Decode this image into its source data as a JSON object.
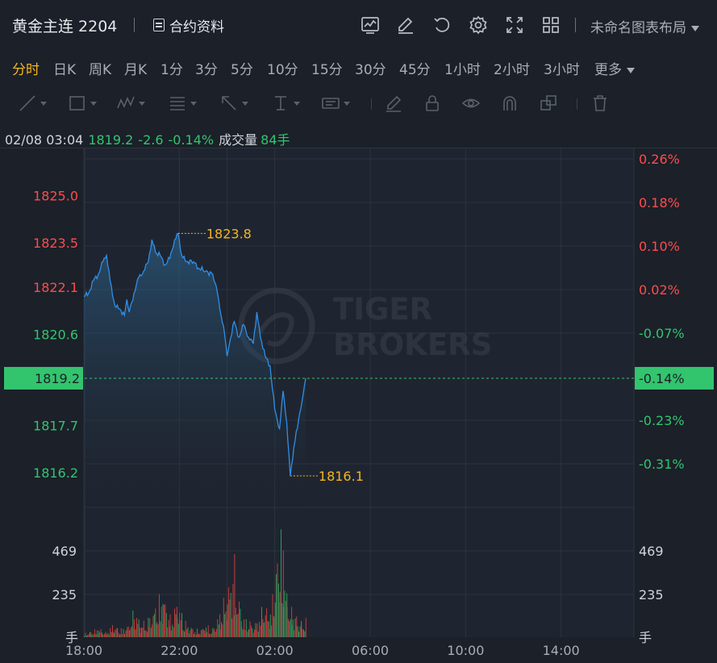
{
  "header": {
    "title": "黄金主连 2204",
    "contract_label": "合约资料",
    "layout_name": "未命名图表布局",
    "icons": [
      "chart-line-icon",
      "edit-icon",
      "undo-icon",
      "gear-icon",
      "fullscreen-icon",
      "grid-icon"
    ]
  },
  "periods": [
    {
      "label": "分时",
      "active": true
    },
    {
      "label": "日K"
    },
    {
      "label": "周K"
    },
    {
      "label": "月K"
    },
    {
      "label": "1分"
    },
    {
      "label": "3分"
    },
    {
      "label": "5分"
    },
    {
      "label": "10分"
    },
    {
      "label": "15分"
    },
    {
      "label": "30分"
    },
    {
      "label": "45分"
    },
    {
      "label": "1小时"
    },
    {
      "label": "2小时"
    },
    {
      "label": "3小时"
    },
    {
      "label": "更多"
    }
  ],
  "drawing_tools": [
    "line-tool-icon",
    "rect-tool-icon",
    "wave-tool-icon",
    "fib-tool-icon",
    "arrow-tool-icon",
    "text-position-tool-icon",
    "text-label-tool-icon",
    "brush-icon",
    "lock-icon",
    "eye-icon",
    "magnet-icon",
    "copy-icon",
    "trash-icon"
  ],
  "info": {
    "datetime": "02/08 03:04",
    "price": "1819.2",
    "change": "-2.6",
    "change_pct": "-0.14%",
    "volume_label": "成交量",
    "volume": "84手"
  },
  "colors": {
    "up": "#ff4c4c",
    "down": "#33c46e",
    "line": "#2f8fe8",
    "accent": "#f5b622",
    "bg": "#1b2029"
  },
  "watermark": {
    "line1": "TIGER",
    "line2": "BROKERS"
  },
  "chart_data": {
    "type": "line",
    "price_ticks": [
      1825.0,
      1823.5,
      1822.1,
      1820.6,
      1817.7,
      1816.2
    ],
    "pct_ticks": [
      "0.26%",
      "0.18%",
      "0.10%",
      "0.02%",
      "-0.07%",
      "-0.23%",
      "-0.31%"
    ],
    "current_price": "1819.2",
    "current_pct": "-0.14%",
    "high_label": "1823.8",
    "low_label": "1816.1",
    "volume_ticks": [
      "469",
      "235"
    ],
    "volume_unit": "手",
    "time_ticks": [
      "18:00",
      "22:00",
      "02:00",
      "06:00",
      "10:00",
      "14:00"
    ],
    "ylim": [
      1815.1,
      1826.5
    ],
    "price_series": [
      [
        0,
        1821.8
      ],
      [
        0.2,
        1821.9
      ],
      [
        0.4,
        1822.3
      ],
      [
        0.6,
        1822.5
      ],
      [
        0.8,
        1822.9
      ],
      [
        0.95,
        1823.1
      ],
      [
        1.1,
        1822.3
      ],
      [
        1.3,
        1821.5
      ],
      [
        1.5,
        1821.4
      ],
      [
        1.7,
        1821.2
      ],
      [
        1.8,
        1821.7
      ],
      [
        1.9,
        1821.3
      ],
      [
        2.1,
        1821.9
      ],
      [
        2.3,
        1822.4
      ],
      [
        2.5,
        1822.6
      ],
      [
        2.7,
        1822.9
      ],
      [
        2.85,
        1823.6
      ],
      [
        3.0,
        1823.2
      ],
      [
        3.2,
        1823.1
      ],
      [
        3.4,
        1822.8
      ],
      [
        3.6,
        1823.0
      ],
      [
        3.8,
        1823.6
      ],
      [
        3.95,
        1823.8
      ],
      [
        4.1,
        1823.1
      ],
      [
        4.3,
        1822.9
      ],
      [
        4.6,
        1822.9
      ],
      [
        4.8,
        1822.7
      ],
      [
        5.1,
        1822.6
      ],
      [
        5.4,
        1822.5
      ],
      [
        5.6,
        1821.9
      ],
      [
        5.75,
        1821.2
      ],
      [
        5.9,
        1820.6
      ],
      [
        6.0,
        1819.9
      ],
      [
        6.1,
        1820.3
      ],
      [
        6.3,
        1821.0
      ],
      [
        6.5,
        1820.5
      ],
      [
        6.7,
        1820.9
      ],
      [
        6.9,
        1820.5
      ],
      [
        7.1,
        1820.3
      ],
      [
        7.25,
        1821.3
      ],
      [
        7.4,
        1820.5
      ],
      [
        7.6,
        1819.9
      ],
      [
        7.8,
        1819.6
      ],
      [
        8.0,
        1818.2
      ],
      [
        8.2,
        1817.6
      ],
      [
        8.35,
        1818.8
      ],
      [
        8.5,
        1817.8
      ],
      [
        8.65,
        1816.1
      ],
      [
        8.8,
        1817.0
      ],
      [
        9.0,
        1817.9
      ],
      [
        9.15,
        1818.5
      ],
      [
        9.3,
        1819.2
      ]
    ],
    "volume_series": [
      [
        0,
        18
      ],
      [
        0.3,
        25
      ],
      [
        0.6,
        40
      ],
      [
        0.9,
        22
      ],
      [
        1.2,
        55
      ],
      [
        1.5,
        35
      ],
      [
        1.8,
        48
      ],
      [
        2.1,
        120
      ],
      [
        2.4,
        60
      ],
      [
        2.7,
        85
      ],
      [
        3.0,
        140
      ],
      [
        3.3,
        200
      ],
      [
        3.6,
        90
      ],
      [
        3.9,
        160
      ],
      [
        4.2,
        70
      ],
      [
        4.5,
        45
      ],
      [
        4.8,
        30
      ],
      [
        5.1,
        52
      ],
      [
        5.4,
        40
      ],
      [
        5.7,
        110
      ],
      [
        6.0,
        210
      ],
      [
        6.3,
        330
      ],
      [
        6.6,
        90
      ],
      [
        6.9,
        70
      ],
      [
        7.2,
        60
      ],
      [
        7.5,
        140
      ],
      [
        7.8,
        110
      ],
      [
        8.0,
        260
      ],
      [
        8.2,
        470
      ],
      [
        8.35,
        420
      ],
      [
        8.5,
        180
      ],
      [
        8.7,
        120
      ],
      [
        8.9,
        90
      ],
      [
        9.1,
        70
      ],
      [
        9.3,
        84
      ]
    ]
  }
}
